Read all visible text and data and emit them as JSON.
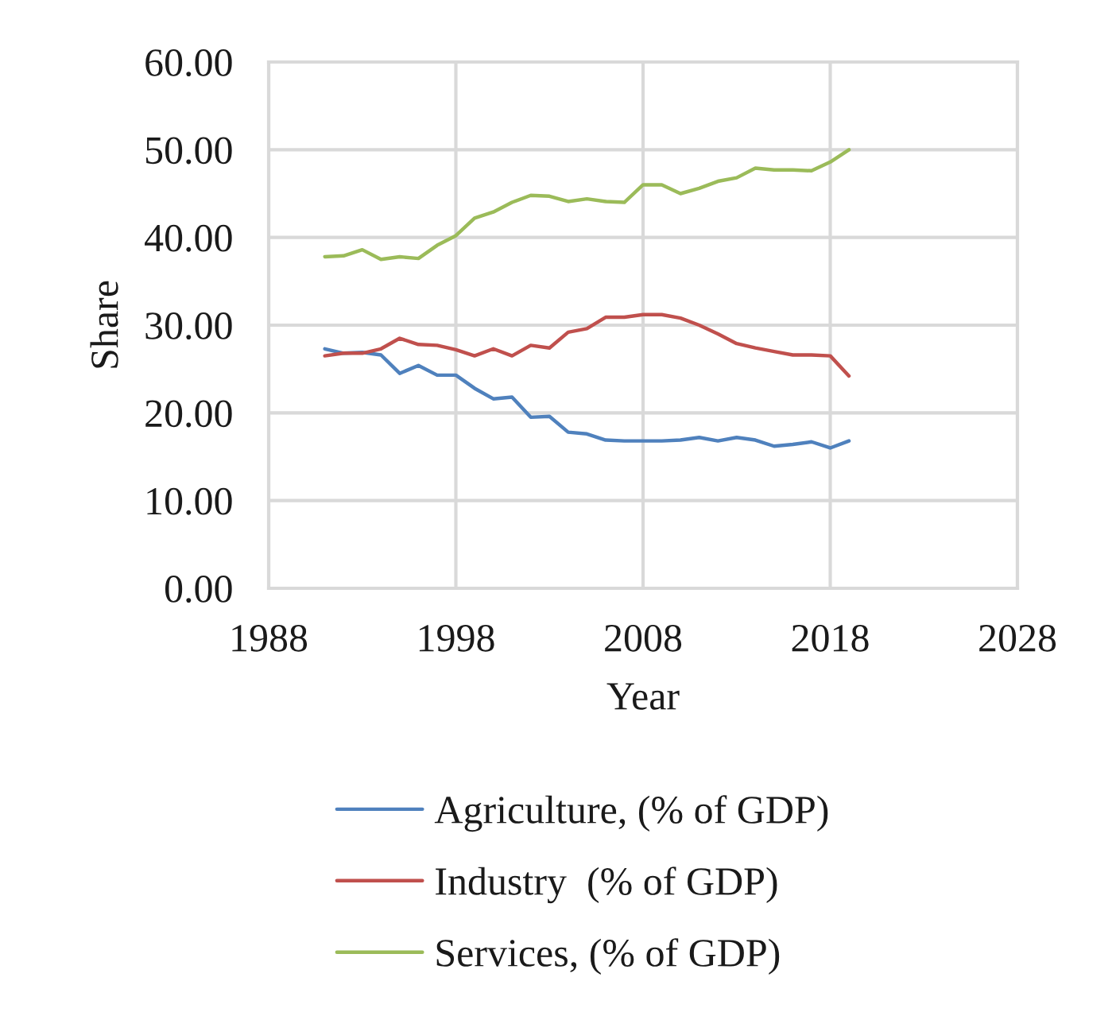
{
  "chart_data": {
    "type": "line",
    "xlabel": "Year",
    "ylabel": "Share",
    "x": [
      1991,
      1992,
      1993,
      1994,
      1995,
      1996,
      1997,
      1998,
      1999,
      2000,
      2001,
      2002,
      2003,
      2004,
      2005,
      2006,
      2007,
      2008,
      2009,
      2010,
      2011,
      2012,
      2013,
      2014,
      2015,
      2016,
      2017,
      2018,
      2019
    ],
    "series": [
      {
        "name": "Agriculture, (% of GDP)",
        "color": "#4f81bd",
        "values": [
          27.3,
          26.8,
          26.9,
          26.6,
          24.5,
          25.4,
          24.3,
          24.3,
          22.8,
          21.6,
          21.8,
          19.5,
          19.6,
          17.8,
          17.6,
          16.9,
          16.8,
          16.8,
          16.8,
          16.9,
          17.2,
          16.8,
          17.2,
          16.9,
          16.2,
          16.4,
          16.7,
          16.0,
          16.8
        ]
      },
      {
        "name": "Industry  (% of GDP)",
        "color": "#c0504d",
        "values": [
          26.5,
          26.8,
          26.8,
          27.3,
          28.5,
          27.8,
          27.7,
          27.2,
          26.5,
          27.3,
          26.5,
          27.7,
          27.4,
          29.2,
          29.6,
          30.9,
          30.9,
          31.2,
          31.2,
          30.8,
          30.0,
          29.0,
          27.9,
          27.4,
          27.0,
          26.6,
          26.6,
          26.5,
          24.2
        ]
      },
      {
        "name": "Services, (% of GDP)",
        "color": "#9bbb59",
        "values": [
          37.8,
          37.9,
          38.6,
          37.5,
          37.8,
          37.6,
          39.1,
          40.2,
          42.2,
          42.9,
          44.0,
          44.8,
          44.7,
          44.1,
          44.4,
          44.1,
          44.0,
          46.0,
          46.0,
          45.0,
          45.6,
          46.4,
          46.8,
          47.9,
          47.7,
          47.7,
          47.6,
          48.6,
          50.0
        ]
      }
    ],
    "xlim": [
      1988,
      2028
    ],
    "xticks": [
      1988,
      1998,
      2008,
      2018,
      2028
    ],
    "ylim": [
      0,
      60
    ],
    "yticks": [
      {
        "value": 0,
        "label": "0.00"
      },
      {
        "value": 10,
        "label": "10.00"
      },
      {
        "value": 20,
        "label": "20.00"
      },
      {
        "value": 30,
        "label": "30.00"
      },
      {
        "value": 40,
        "label": "40.00"
      },
      {
        "value": 50,
        "label": "50.00"
      },
      {
        "value": 60,
        "label": "60.00"
      }
    ],
    "grid": true,
    "legend": "bottom",
    "marker": "none",
    "line_style": "solid"
  }
}
